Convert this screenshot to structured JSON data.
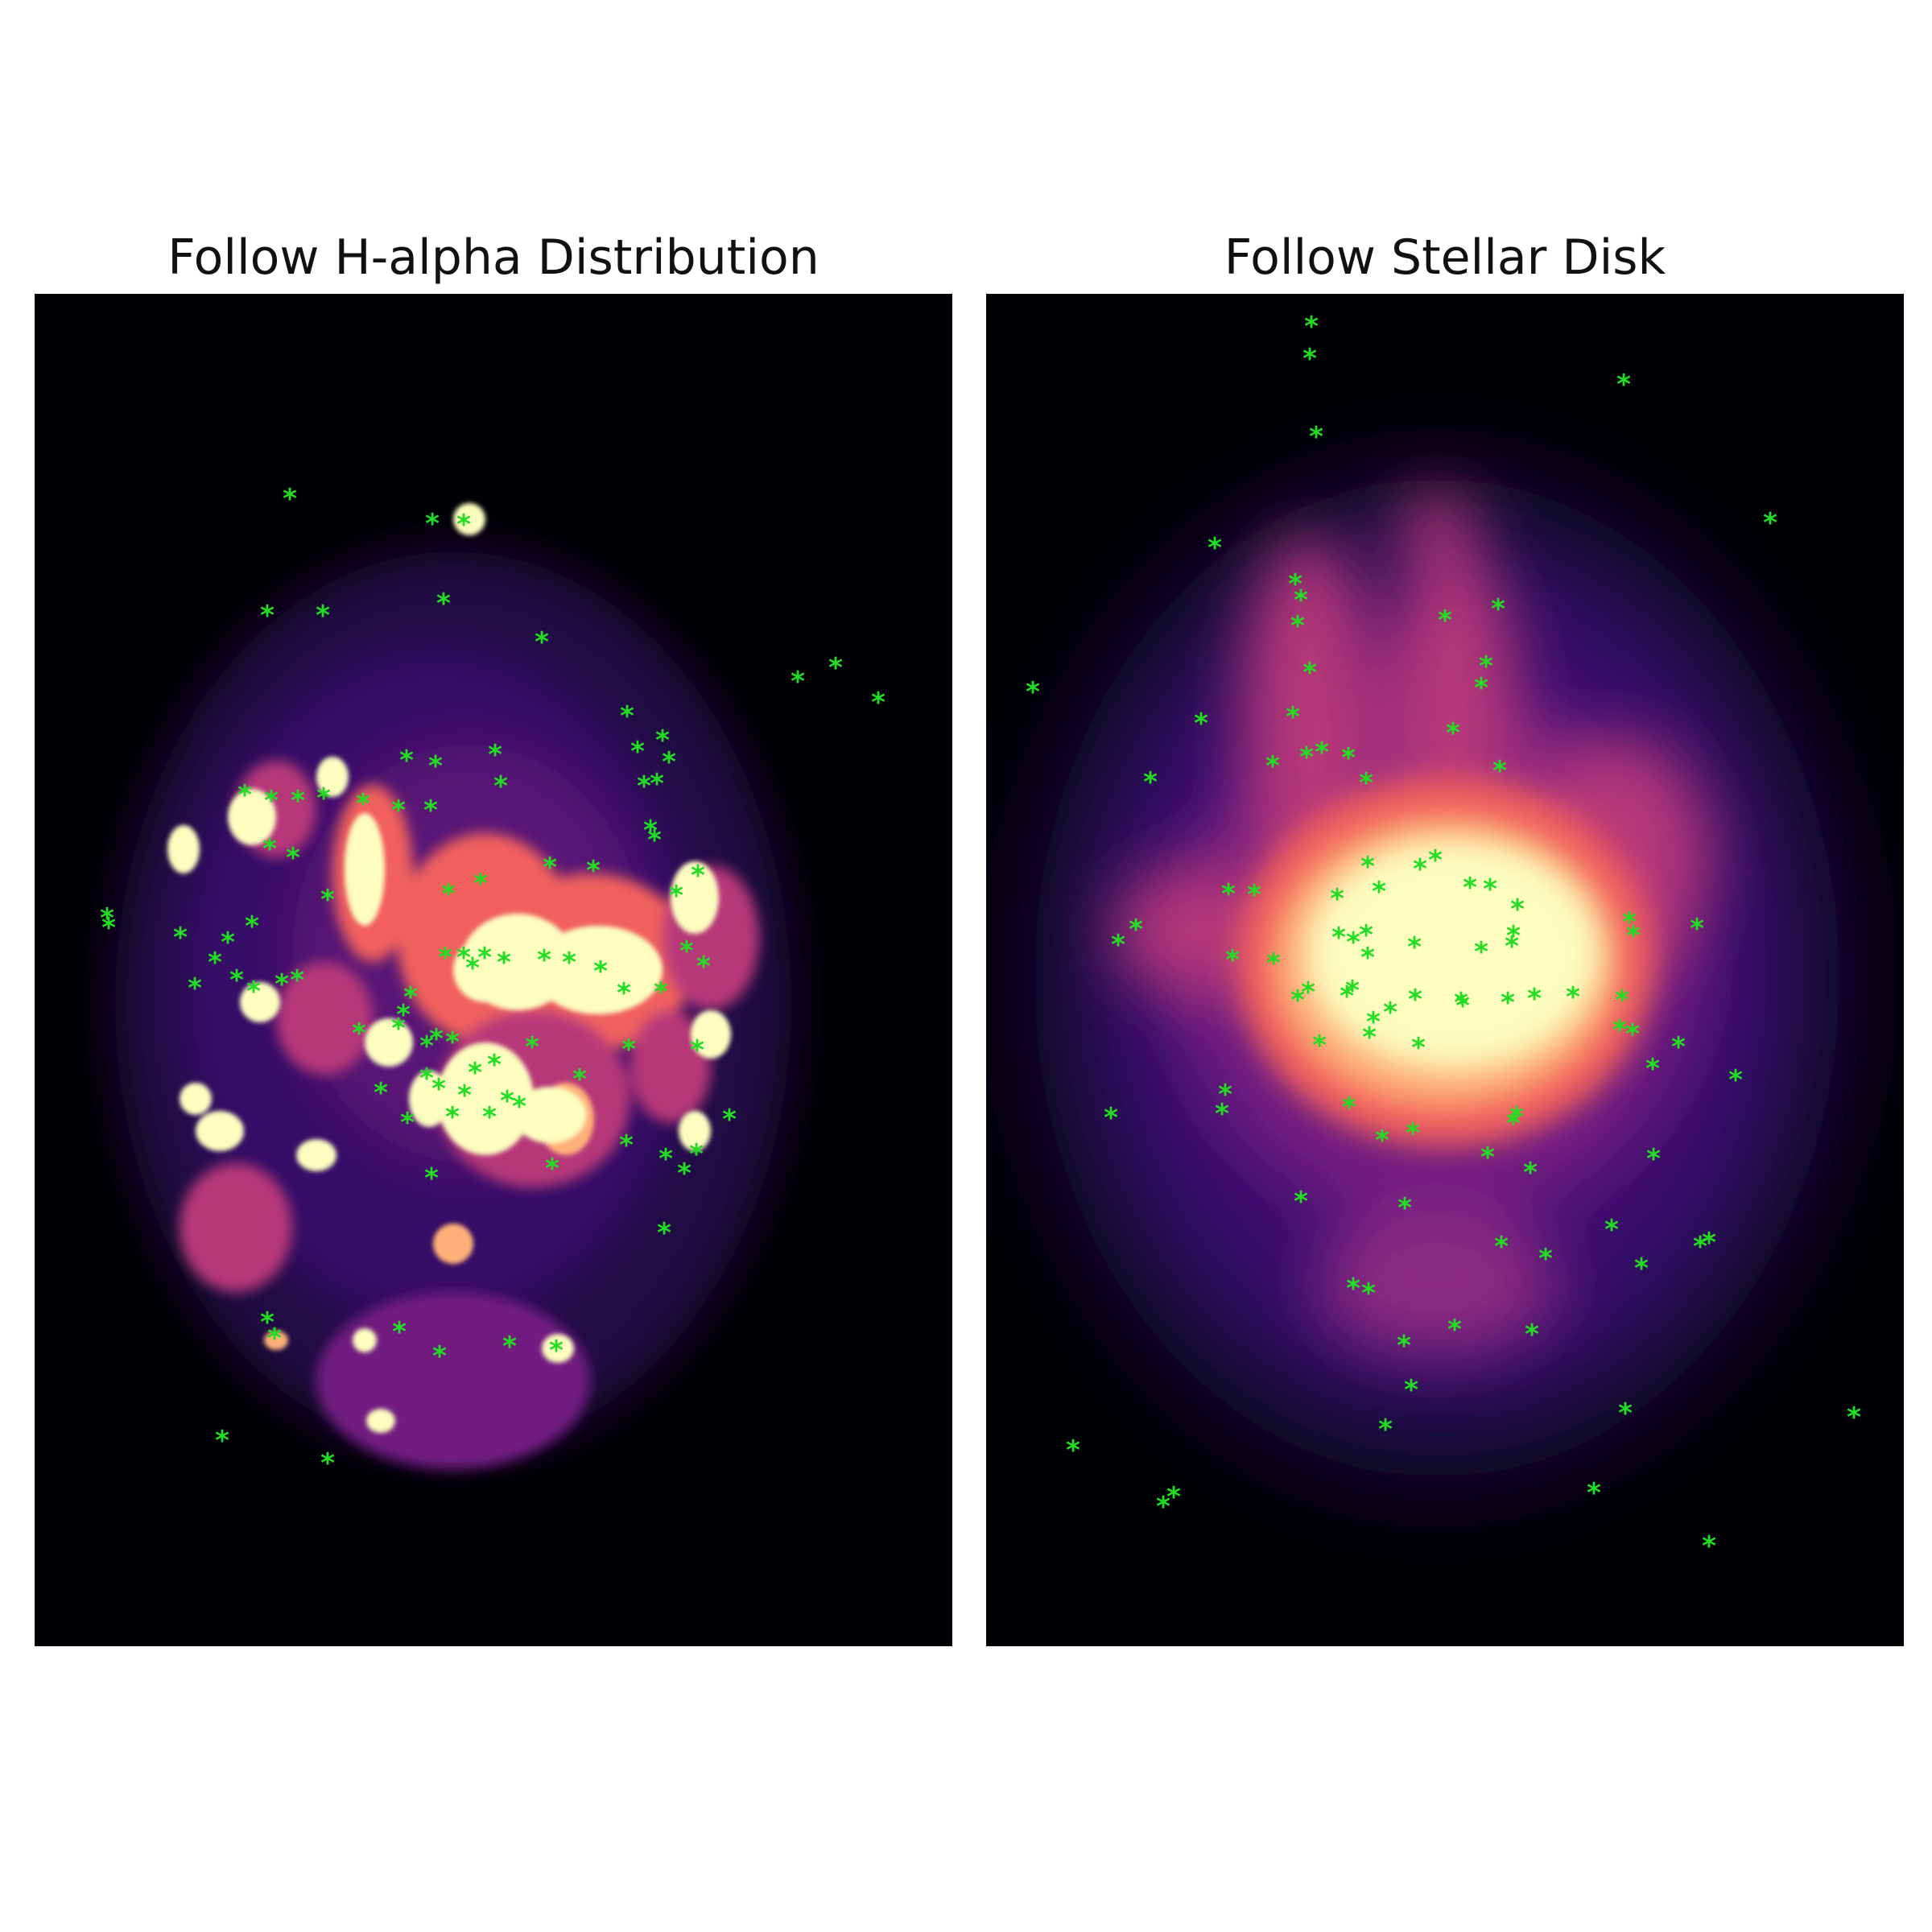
{
  "panels": [
    {
      "id": "left",
      "title": "Follow H-alpha Distribution",
      "image": "h-alpha-emission-map"
    },
    {
      "id": "right",
      "title": "Follow Stellar Disk",
      "image": "stellar-disk-map"
    }
  ],
  "colors": {
    "background": "#000004",
    "markers": "#22dd22",
    "colormap": [
      "#000004",
      "#2c115f",
      "#721f81",
      "#b73779",
      "#f1605d",
      "#feb078",
      "#fcfdbf"
    ]
  },
  "marker_symbol": "*"
}
